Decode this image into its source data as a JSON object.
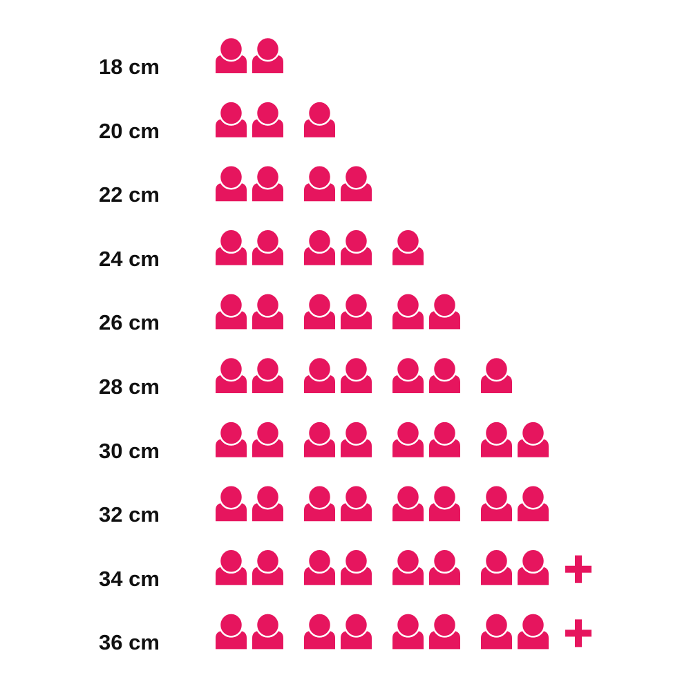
{
  "chart_data": {
    "type": "pictograph",
    "icon": "person-icon",
    "overflow_icon": "plus-icon",
    "color": "#E6155E",
    "categories": [
      "18 cm",
      "20 cm",
      "22 cm",
      "24 cm",
      "26 cm",
      "28 cm",
      "30 cm",
      "32 cm",
      "34 cm",
      "36 cm"
    ],
    "values": [
      2,
      3,
      4,
      5,
      6,
      7,
      8,
      8,
      8,
      8
    ],
    "more": [
      false,
      false,
      false,
      false,
      false,
      false,
      false,
      false,
      true,
      true
    ]
  }
}
